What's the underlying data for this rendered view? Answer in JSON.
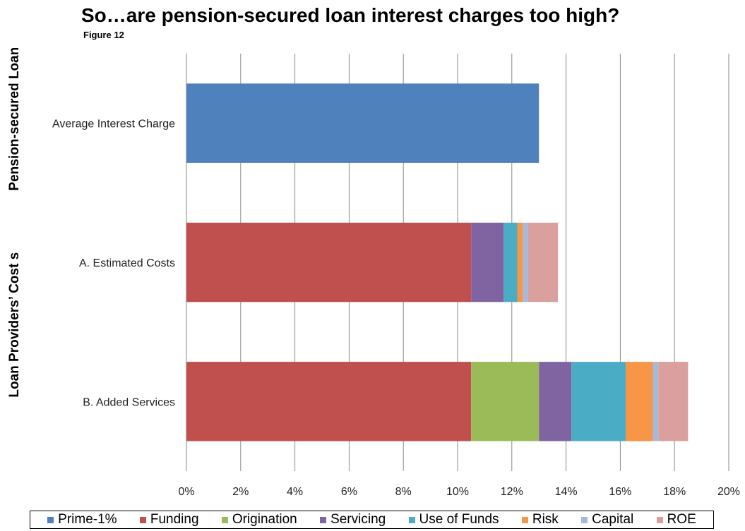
{
  "chart_data": {
    "type": "bar",
    "orientation": "horizontal",
    "stacked": true,
    "title": "So…are pension-secured loan interest charges too high?",
    "subtitle": "Figure 12",
    "group_labels": [
      "Pension-secured Loan",
      "Loan Providers’ Cost s"
    ],
    "categories": [
      "Average Interest Charge",
      "A. Estimated Costs",
      "B. Added Services"
    ],
    "xlim": [
      0,
      20
    ],
    "xticks": [
      "0%",
      "2%",
      "4%",
      "6%",
      "8%",
      "10%",
      "12%",
      "14%",
      "16%",
      "18%",
      "20%"
    ],
    "grid": true,
    "legend_position": "bottom",
    "series": [
      {
        "name": "Prime-1%",
        "color": "#4F81BD",
        "values": [
          13.0,
          0,
          0
        ]
      },
      {
        "name": "Funding",
        "color": "#C0504D",
        "values": [
          0,
          10.5,
          10.5
        ]
      },
      {
        "name": "Origination",
        "color": "#9BBB59",
        "values": [
          0,
          0,
          2.5
        ]
      },
      {
        "name": "Servicing",
        "color": "#8064A2",
        "values": [
          0,
          1.2,
          1.2
        ]
      },
      {
        "name": "Use of Funds",
        "color": "#4BACC6",
        "values": [
          0,
          0.5,
          2.0
        ]
      },
      {
        "name": "Risk",
        "color": "#F79646",
        "values": [
          0,
          0.2,
          1.0
        ]
      },
      {
        "name": "Capital",
        "color": "#A6B9DB",
        "values": [
          0,
          0.2,
          0.2
        ]
      },
      {
        "name": "ROE",
        "color": "#D9A09E",
        "values": [
          0,
          1.1,
          1.1
        ]
      }
    ]
  }
}
